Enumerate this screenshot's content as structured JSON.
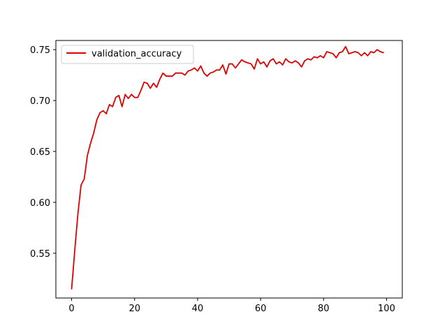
{
  "chart_data": {
    "type": "line",
    "title": "",
    "xlabel": "",
    "ylabel": "",
    "xlim": [
      -5,
      105
    ],
    "ylim": [
      0.506,
      0.759
    ],
    "x_ticks": [
      0,
      20,
      40,
      60,
      80,
      100
    ],
    "y_ticks": [
      0.55,
      0.6,
      0.65,
      0.7,
      0.75
    ],
    "x_tick_labels": [
      "0",
      "20",
      "40",
      "60",
      "80",
      "100"
    ],
    "y_tick_labels": [
      "0.55",
      "0.60",
      "0.65",
      "0.70",
      "0.75"
    ],
    "grid": false,
    "legend": {
      "position": "top-left",
      "entries": [
        "validation_accuracy"
      ]
    },
    "series": [
      {
        "name": "validation_accuracy",
        "color": "#dd0000",
        "x": [
          0,
          1,
          2,
          3,
          4,
          5,
          6,
          7,
          8,
          9,
          10,
          11,
          12,
          13,
          14,
          15,
          16,
          17,
          18,
          19,
          20,
          21,
          22,
          23,
          24,
          25,
          26,
          27,
          28,
          29,
          30,
          31,
          32,
          33,
          34,
          35,
          36,
          37,
          38,
          39,
          40,
          41,
          42,
          43,
          44,
          45,
          46,
          47,
          48,
          49,
          50,
          51,
          52,
          53,
          54,
          55,
          56,
          57,
          58,
          59,
          60,
          61,
          62,
          63,
          64,
          65,
          66,
          67,
          68,
          69,
          70,
          71,
          72,
          73,
          74,
          75,
          76,
          77,
          78,
          79,
          80,
          81,
          82,
          83,
          84,
          85,
          86,
          87,
          88,
          89,
          90,
          91,
          92,
          93,
          94,
          95,
          96,
          97,
          98,
          99
        ],
        "values": [
          0.515,
          0.553,
          0.589,
          0.617,
          0.623,
          0.646,
          0.658,
          0.668,
          0.681,
          0.688,
          0.69,
          0.687,
          0.696,
          0.694,
          0.703,
          0.705,
          0.694,
          0.706,
          0.702,
          0.706,
          0.703,
          0.703,
          0.71,
          0.718,
          0.717,
          0.712,
          0.717,
          0.713,
          0.721,
          0.727,
          0.724,
          0.724,
          0.724,
          0.727,
          0.727,
          0.727,
          0.725,
          0.729,
          0.73,
          0.732,
          0.729,
          0.734,
          0.727,
          0.724,
          0.727,
          0.728,
          0.73,
          0.73,
          0.735,
          0.726,
          0.736,
          0.736,
          0.732,
          0.736,
          0.74,
          0.738,
          0.737,
          0.736,
          0.731,
          0.741,
          0.736,
          0.738,
          0.733,
          0.739,
          0.741,
          0.736,
          0.738,
          0.735,
          0.741,
          0.738,
          0.737,
          0.739,
          0.737,
          0.733,
          0.739,
          0.741,
          0.74,
          0.743,
          0.742,
          0.744,
          0.742,
          0.748,
          0.747,
          0.746,
          0.742,
          0.747,
          0.748,
          0.753,
          0.746,
          0.747,
          0.748,
          0.747,
          0.744,
          0.747,
          0.744,
          0.748,
          0.747,
          0.75,
          0.748,
          0.747
        ]
      }
    ]
  }
}
